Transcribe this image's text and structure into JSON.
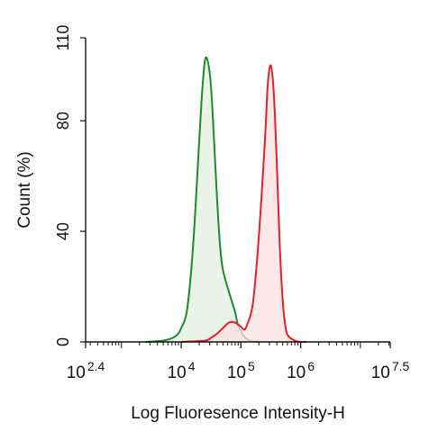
{
  "chart_data": {
    "type": "area",
    "xlabel": "Log Fluoresence Intensity-H",
    "ylabel": "Count  (%)",
    "xscale": "log",
    "xlim_log10": [
      2.4,
      7.5
    ],
    "ylim": [
      0,
      110
    ],
    "grid": false,
    "y_ticks": [
      {
        "value": 0,
        "label": "0"
      },
      {
        "value": 40,
        "label": "40"
      },
      {
        "value": 80,
        "label": "80"
      },
      {
        "value": 110,
        "label": "110"
      }
    ],
    "x_ticks": [
      {
        "exp": 2.4,
        "base": "10",
        "power": "2.4"
      },
      {
        "exp": 4,
        "base": "10",
        "power": "4"
      },
      {
        "exp": 5,
        "base": "10",
        "power": "5"
      },
      {
        "exp": 6,
        "base": "10",
        "power": "6"
      },
      {
        "exp": 7.5,
        "base": "10",
        "power": "7.5"
      }
    ],
    "series": [
      {
        "color": "#1e8a2e",
        "fill": "#e3efdf",
        "x_log10": [
          3.4,
          3.7,
          3.9,
          4.0,
          4.1,
          4.2,
          4.3,
          4.35,
          4.4,
          4.45,
          4.5,
          4.55,
          4.6,
          4.65,
          4.7,
          4.8,
          4.9,
          4.95,
          5.0,
          5.05,
          5.15,
          5.3
        ],
        "values": [
          0,
          0.5,
          2,
          5,
          12,
          35,
          72,
          90,
          102,
          101,
          92,
          73,
          52,
          35,
          26,
          18,
          11,
          6,
          4,
          2,
          0.5,
          0
        ]
      },
      {
        "color": "#e0202a",
        "fill": "#fbe0e2",
        "x_log10": [
          4.0,
          4.4,
          4.5,
          4.6,
          4.7,
          4.8,
          4.9,
          5.0,
          5.05,
          5.1,
          5.2,
          5.3,
          5.4,
          5.45,
          5.5,
          5.55,
          5.6,
          5.65,
          5.7,
          5.75,
          5.8,
          5.9,
          6.0,
          6.1
        ],
        "values": [
          0,
          0.5,
          1.5,
          3,
          5,
          7,
          7,
          5.5,
          4.5,
          6,
          14,
          38,
          72,
          93,
          100,
          90,
          65,
          35,
          15,
          5,
          2,
          0.5,
          0,
          0
        ]
      }
    ]
  }
}
